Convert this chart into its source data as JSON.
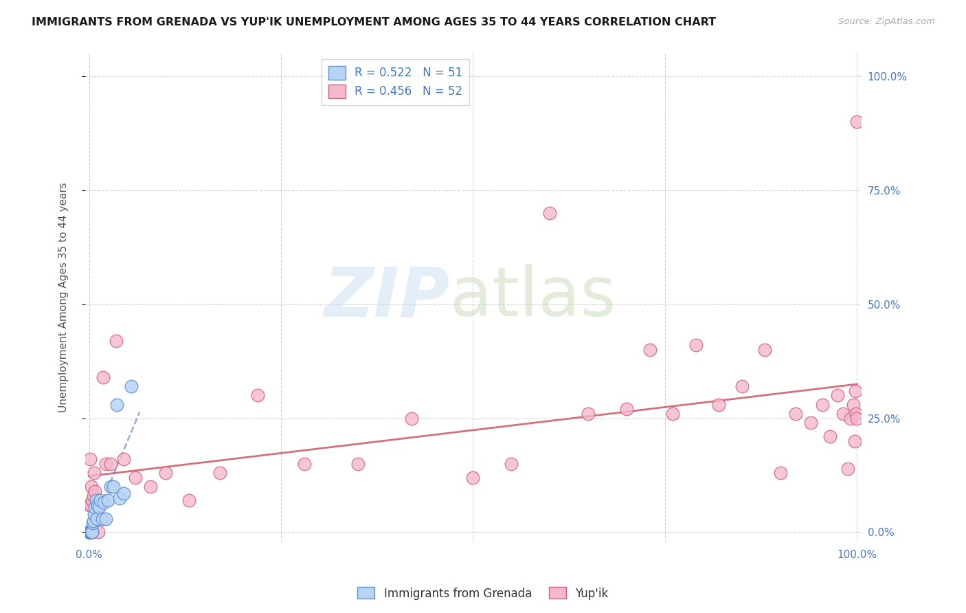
{
  "title": "IMMIGRANTS FROM GRENADA VS YUP'IK UNEMPLOYMENT AMONG AGES 35 TO 44 YEARS CORRELATION CHART",
  "source": "Source: ZipAtlas.com",
  "ylabel": "Unemployment Among Ages 35 to 44 years",
  "ytick_labels": [
    "0.0%",
    "25.0%",
    "50.0%",
    "75.0%",
    "100.0%"
  ],
  "ytick_vals": [
    0.0,
    0.25,
    0.5,
    0.75,
    1.0
  ],
  "legend_label1": "Immigrants from Grenada",
  "legend_label2": "Yup'ik",
  "R1": "0.522",
  "N1": "51",
  "R2": "0.456",
  "N2": "52",
  "color_grenada_face": "#b8d4f4",
  "color_grenada_edge": "#6090d0",
  "color_yupik_face": "#f5b8cc",
  "color_yupik_edge": "#d06080",
  "color_trendline1": "#7090cc",
  "color_trendline2": "#d06070",
  "grid_color": "#cccccc",
  "background_color": "#ffffff",
  "tick_color": "#4477cc",
  "grenada_x": [
    0.0002,
    0.0002,
    0.0002,
    0.0002,
    0.0002,
    0.0002,
    0.0002,
    0.0002,
    0.0002,
    0.0002,
    0.0002,
    0.0002,
    0.0002,
    0.0002,
    0.0002,
    0.0002,
    0.0002,
    0.0002,
    0.0002,
    0.0002,
    0.0005,
    0.0005,
    0.0008,
    0.001,
    0.001,
    0.0012,
    0.0015,
    0.002,
    0.002,
    0.003,
    0.003,
    0.004,
    0.005,
    0.006,
    0.007,
    0.008,
    0.009,
    0.01,
    0.011,
    0.013,
    0.015,
    0.017,
    0.019,
    0.022,
    0.025,
    0.028,
    0.032,
    0.036,
    0.04,
    0.045,
    0.055
  ],
  "grenada_y": [
    0.0,
    0.0,
    0.0,
    0.0,
    0.0,
    0.0,
    0.0,
    0.0,
    0.0,
    0.0,
    0.0,
    0.0,
    0.0,
    0.0,
    0.0,
    0.0,
    0.0,
    0.0,
    0.0,
    0.0,
    0.0,
    0.0,
    0.0,
    0.0,
    0.0,
    0.0,
    0.0,
    0.0,
    0.0,
    0.0,
    0.0,
    0.0,
    0.02,
    0.025,
    0.04,
    0.055,
    0.07,
    0.03,
    0.06,
    0.055,
    0.07,
    0.03,
    0.065,
    0.03,
    0.07,
    0.1,
    0.1,
    0.28,
    0.075,
    0.085,
    0.32
  ],
  "yupik_x": [
    0.0005,
    0.001,
    0.002,
    0.003,
    0.004,
    0.005,
    0.006,
    0.007,
    0.008,
    0.01,
    0.012,
    0.015,
    0.018,
    0.022,
    0.028,
    0.035,
    0.045,
    0.06,
    0.08,
    0.1,
    0.13,
    0.17,
    0.22,
    0.28,
    0.35,
    0.42,
    0.5,
    0.55,
    0.6,
    0.65,
    0.7,
    0.73,
    0.76,
    0.79,
    0.82,
    0.85,
    0.88,
    0.9,
    0.92,
    0.94,
    0.955,
    0.965,
    0.975,
    0.982,
    0.988,
    0.992,
    0.995,
    0.997,
    0.998,
    0.999,
    0.9995,
    0.9998
  ],
  "yupik_y": [
    0.06,
    0.16,
    0.06,
    0.1,
    0.07,
    0.0,
    0.08,
    0.13,
    0.09,
    0.06,
    0.0,
    0.06,
    0.34,
    0.15,
    0.15,
    0.42,
    0.16,
    0.12,
    0.1,
    0.13,
    0.07,
    0.13,
    0.3,
    0.15,
    0.15,
    0.25,
    0.12,
    0.15,
    0.7,
    0.26,
    0.27,
    0.4,
    0.26,
    0.41,
    0.28,
    0.32,
    0.4,
    0.13,
    0.26,
    0.24,
    0.28,
    0.21,
    0.3,
    0.26,
    0.14,
    0.25,
    0.28,
    0.2,
    0.31,
    0.26,
    0.25,
    0.9
  ]
}
